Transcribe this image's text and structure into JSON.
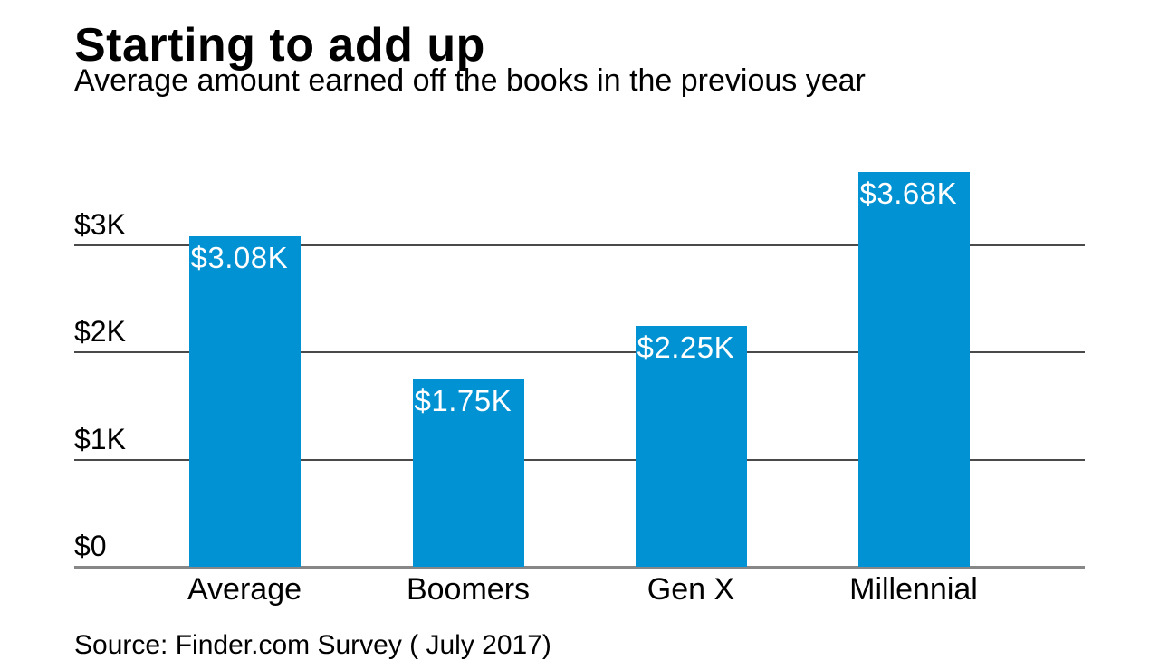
{
  "header": {
    "title": "Starting to add up",
    "subtitle": "Average amount earned off the books in the previous year"
  },
  "footer": {
    "source": "Source: Finder.com Survey ( July 2017)"
  },
  "chart_data": {
    "type": "bar",
    "title": "Starting to add up",
    "subtitle": "Average amount earned off the books in the previous year",
    "categories": [
      "Average",
      "Boomers",
      "Gen X",
      "Millennial"
    ],
    "values": [
      3080,
      1750,
      2250,
      3680
    ],
    "bar_labels": [
      "$3.08K",
      "$1.75K",
      "$2.25K",
      "$3.68K"
    ],
    "xlabel": "",
    "ylabel": "",
    "ylim": [
      0,
      4000
    ],
    "yticks": [
      {
        "label": "$0",
        "value": 0
      },
      {
        "label": "$1K",
        "value": 1000
      },
      {
        "label": "$2K",
        "value": 2000
      },
      {
        "label": "$3K",
        "value": 3000
      }
    ],
    "grid": true,
    "legend": false,
    "source": "Source: Finder.com Survey ( July 2017)",
    "colors": {
      "bar": "#0092d2",
      "bar_label_text": "#ffffff",
      "text": "#000000",
      "gridline": "#4a4a4a",
      "baseline": "#878787"
    }
  }
}
